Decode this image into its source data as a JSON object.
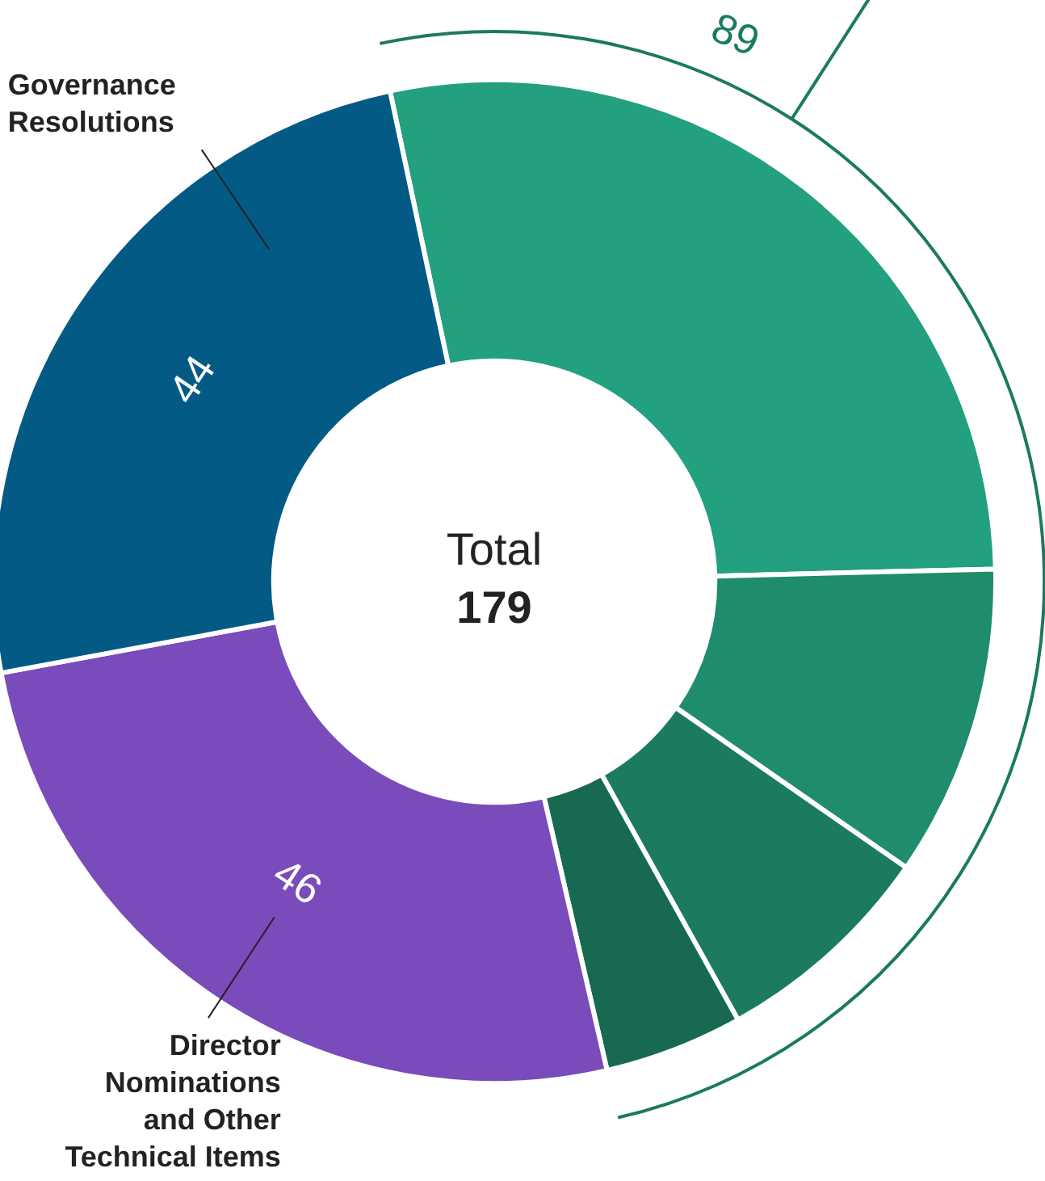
{
  "chart_data": {
    "type": "donut",
    "categories": [
      null,
      null,
      null,
      null,
      "Director Nominations and Other Technical Items",
      "Governance Resolutions"
    ],
    "values": [
      50,
      18,
      13,
      8,
      46,
      44
    ],
    "colors": [
      "#22a07f",
      "#1e8c6d",
      "#1b7a5f",
      "#176a51",
      "#7a4bbb",
      "#035a85"
    ],
    "value_labels": [
      null,
      null,
      null,
      null,
      "46",
      "44"
    ],
    "annotations": [
      "Total",
      "179",
      "89"
    ],
    "legend": false
  }
}
